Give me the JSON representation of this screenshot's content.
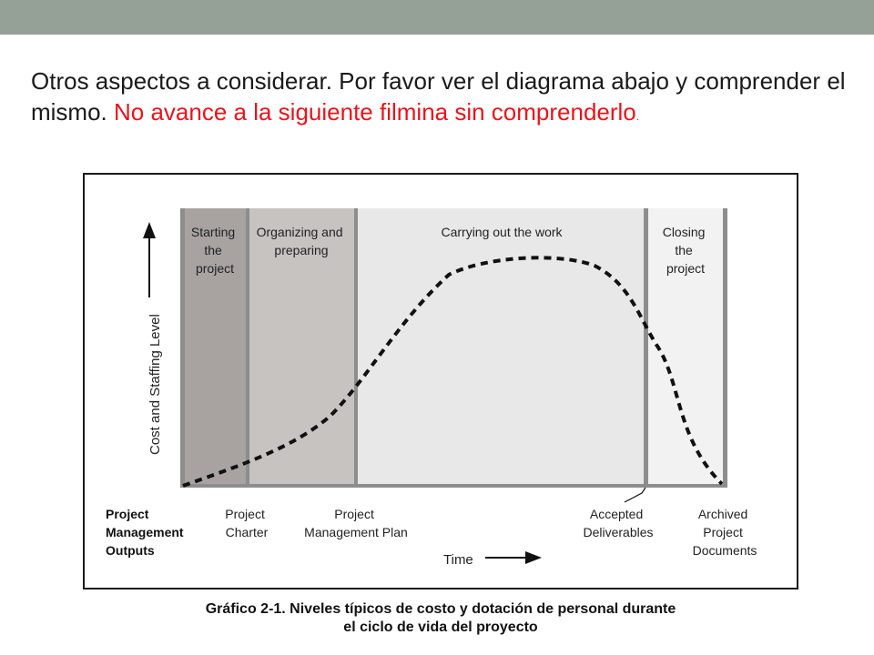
{
  "slide": {
    "intro_text": "Otros aspectos a considerar.  Por favor ver el diagrama abajo y comprender el mismo.",
    "warning_text": "No avance a la siguiente filmina sin comprenderlo",
    "warning_period": "."
  },
  "diagram": {
    "phases": [
      {
        "lines": [
          "Starting",
          "the",
          "project"
        ]
      },
      {
        "lines": [
          "Organizing and",
          "preparing"
        ]
      },
      {
        "lines": [
          "Carrying out the work"
        ]
      },
      {
        "lines": [
          "Closing",
          "the",
          "project"
        ]
      }
    ],
    "y_axis_label": "Cost and Staffing Level",
    "x_axis_label": "Time",
    "outputs_title": [
      "Project",
      "Management",
      "Outputs"
    ],
    "outputs": [
      {
        "lines": [
          "Project",
          "Charter"
        ]
      },
      {
        "lines": [
          "Project",
          "Management Plan"
        ]
      },
      {
        "lines": [
          "Accepted",
          "Deliverables"
        ]
      },
      {
        "lines": [
          "Archived",
          "Project",
          "Documents"
        ]
      }
    ],
    "colors": {
      "phase1": "#a8a3a0",
      "phase2": "#c6c3c1",
      "phase3": "#e8e8e8",
      "phase4": "#f2f2f2",
      "divider": "#8d8d8d",
      "curve": "#111111"
    }
  },
  "caption": {
    "line1": "Gráfico 2-1. Niveles típicos de costo y dotación de personal durante",
    "line2": "el ciclo de vida del proyecto"
  }
}
